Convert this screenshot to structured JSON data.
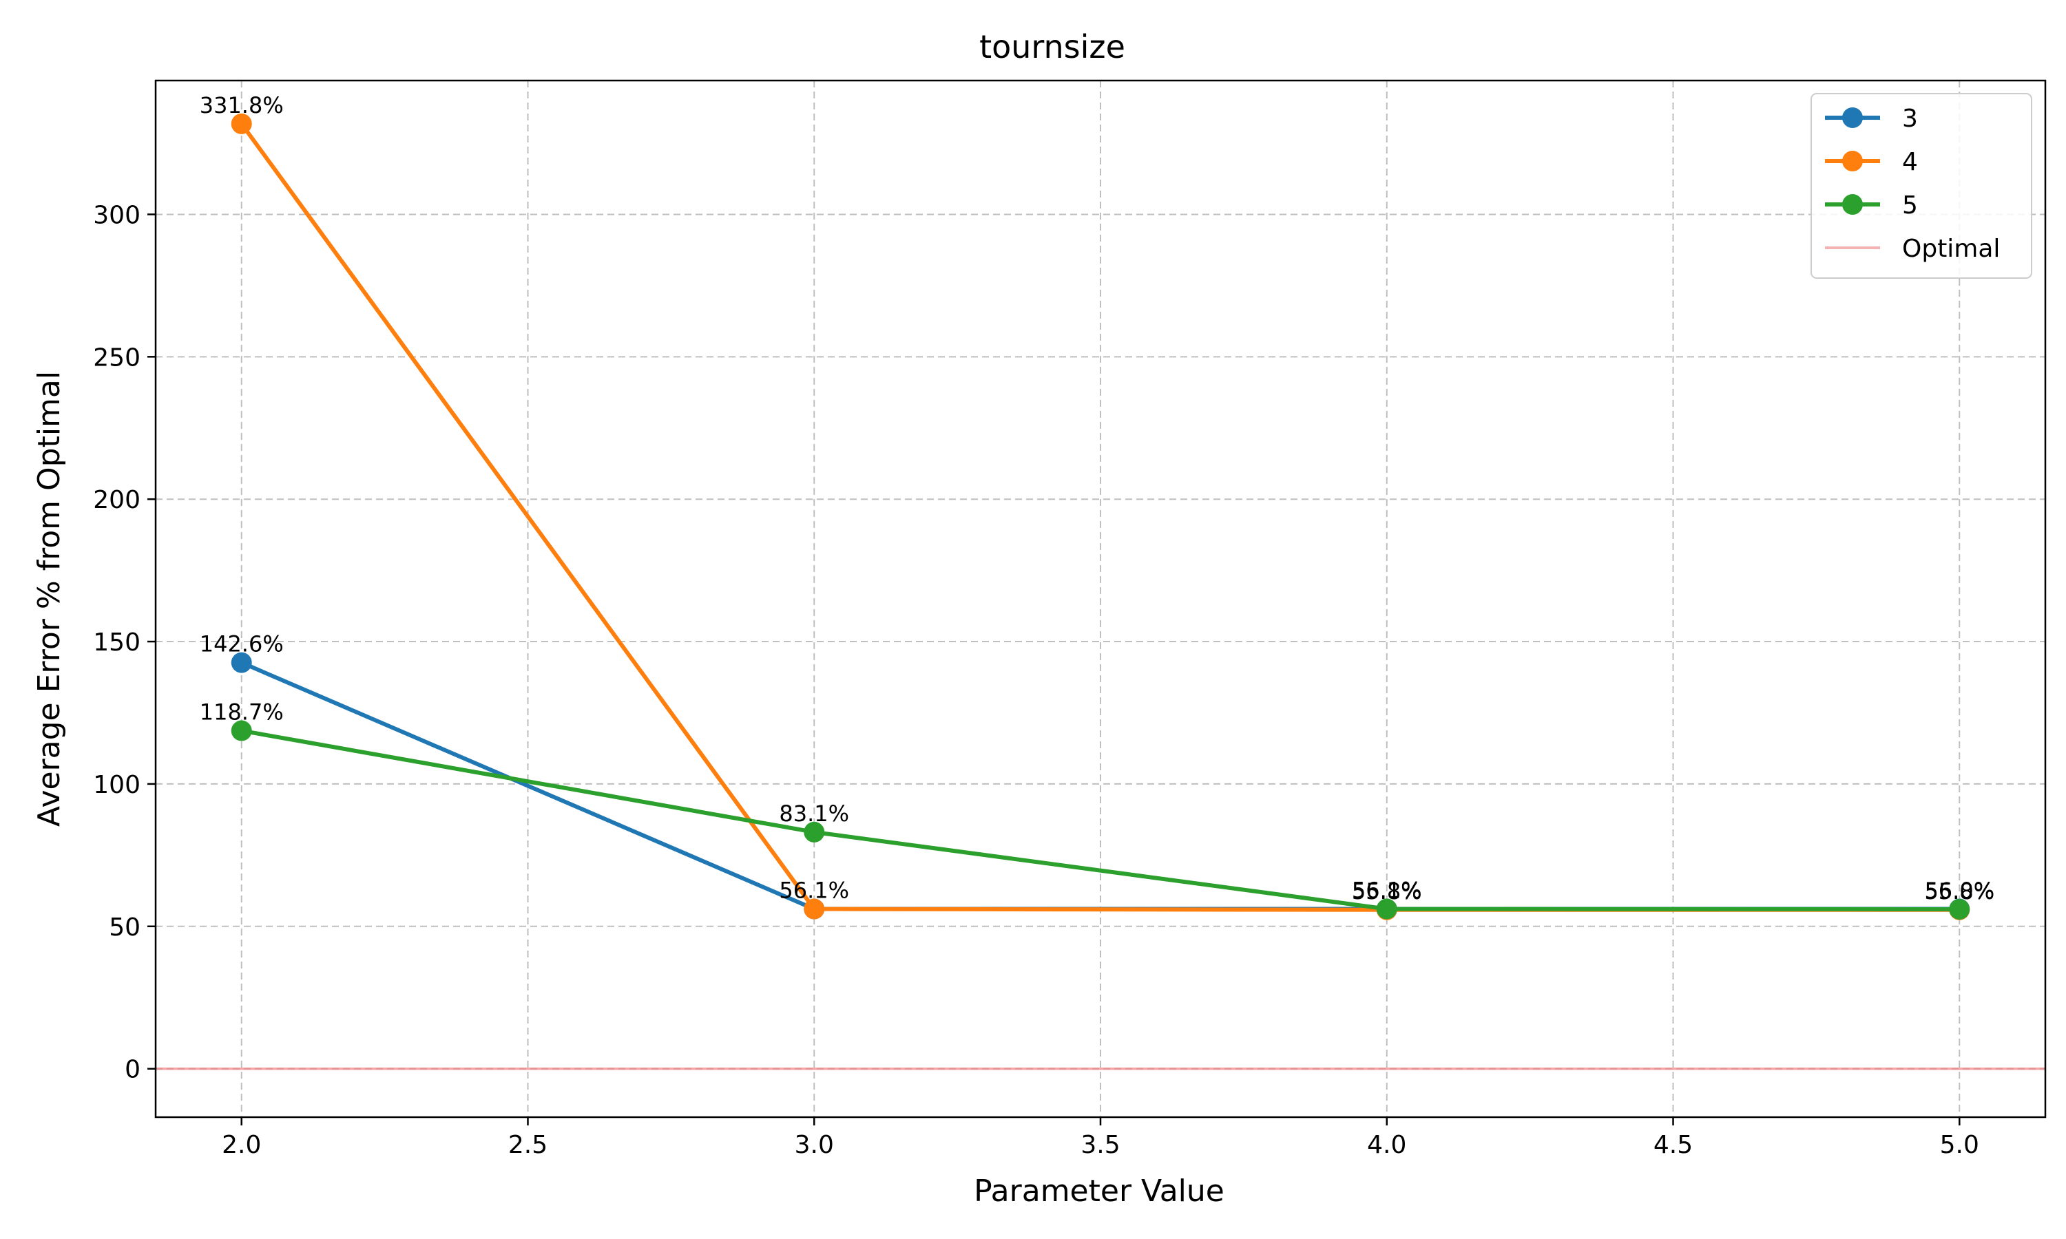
{
  "chart_data": {
    "type": "line",
    "title": "tournsize",
    "xlabel": "Parameter Value",
    "ylabel": "Average Error % from Optimal",
    "xlim": [
      1.85,
      5.15
    ],
    "ylim": [
      -17,
      347
    ],
    "xticks": [
      2.0,
      2.5,
      3.0,
      3.5,
      4.0,
      4.5,
      5.0
    ],
    "xtick_labels": [
      "2.0",
      "2.5",
      "3.0",
      "3.5",
      "4.0",
      "4.5",
      "5.0"
    ],
    "yticks": [
      0,
      50,
      100,
      150,
      200,
      250,
      300
    ],
    "ytick_labels": [
      "0",
      "50",
      "100",
      "150",
      "200",
      "250",
      "300"
    ],
    "grid": true,
    "legend_position": "top-right",
    "x": [
      2.0,
      3.0,
      4.0,
      5.0
    ],
    "series": [
      {
        "name": "3",
        "color": "#1f77b4",
        "values": [
          142.6,
          56.1,
          56.1,
          56.1
        ],
        "point_labels": [
          "142.6%",
          "",
          "",
          ""
        ]
      },
      {
        "name": "4",
        "color": "#ff7f0e",
        "values": [
          331.8,
          56.1,
          55.8,
          55.8
        ],
        "point_labels": [
          "331.8%",
          "56.1%",
          "55.8%",
          "55.8%"
        ]
      },
      {
        "name": "5",
        "color": "#2ca02c",
        "values": [
          118.7,
          83.1,
          56.1,
          56.0
        ],
        "point_labels": [
          "118.7%",
          "83.1%",
          "56.1%",
          "56.0%"
        ]
      }
    ],
    "reference_line": {
      "name": "Optimal",
      "y": 0,
      "color": "#f08080"
    }
  }
}
